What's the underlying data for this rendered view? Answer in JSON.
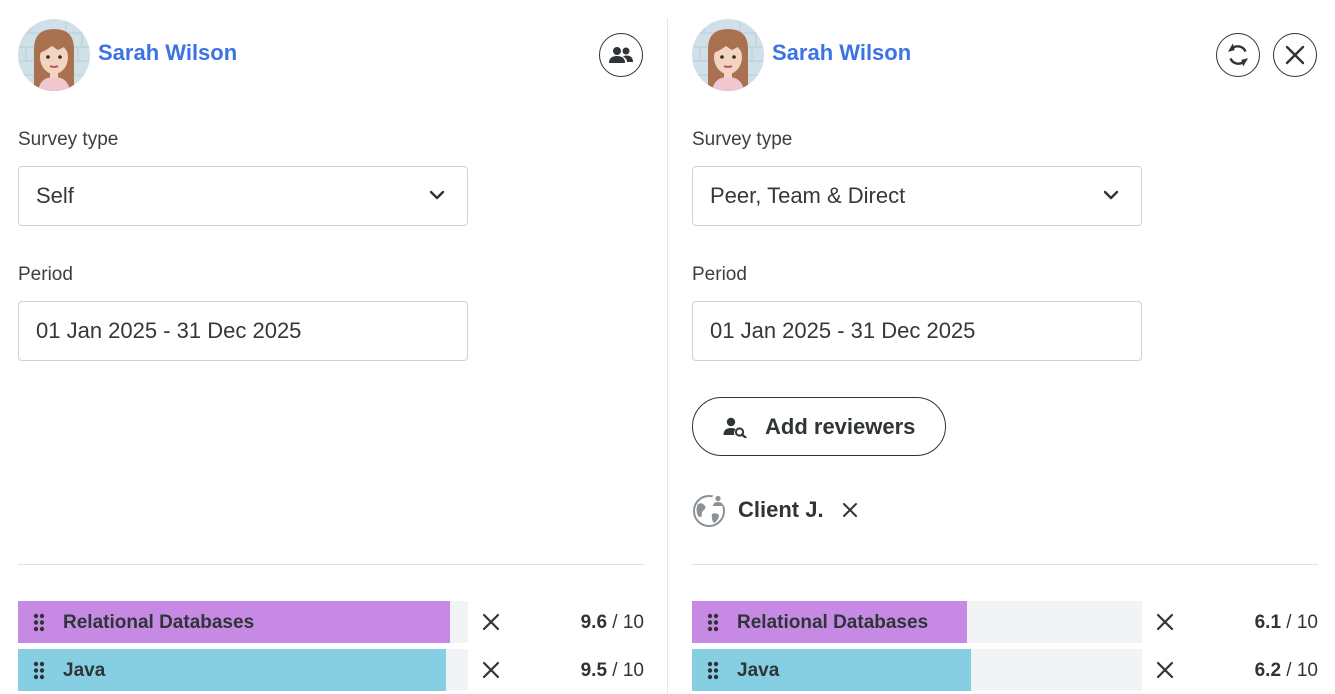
{
  "left_panel": {
    "user_name": "Sarah Wilson",
    "survey_type_label": "Survey type",
    "survey_type_value": "Self",
    "period_label": "Period",
    "period_value": "01 Jan 2025 - 31 Dec 2025",
    "action_icon": "people-icon",
    "skills": [
      {
        "name": "Relational Databases",
        "score": "9.6",
        "max": "/ 10",
        "fill": 0.96,
        "color": "#c78ae4"
      },
      {
        "name": "Java",
        "score": "9.5",
        "max": "/ 10",
        "fill": 0.95,
        "color": "#86cfe3"
      }
    ]
  },
  "right_panel": {
    "user_name": "Sarah Wilson",
    "survey_type_label": "Survey type",
    "survey_type_value": "Peer, Team & Direct",
    "period_label": "Period",
    "period_value": "01 Jan 2025 - 31 Dec 2025",
    "add_reviewers_label": "Add reviewers",
    "reviewer_chip": {
      "label": "Client J.",
      "icon": "globe-user-icon"
    },
    "action_icons": [
      "refresh-icon",
      "close-icon"
    ],
    "skills": [
      {
        "name": "Relational Databases",
        "score": "6.1",
        "max": "/ 10",
        "fill": 0.61,
        "color": "#c78ae4"
      },
      {
        "name": "Java",
        "score": "6.2",
        "max": "/ 10",
        "fill": 0.62,
        "color": "#86cfe3"
      }
    ]
  },
  "colors": {
    "link_blue": "#3b73e2",
    "text_dark": "#2f3437",
    "track_gray": "#f1f3f4"
  }
}
